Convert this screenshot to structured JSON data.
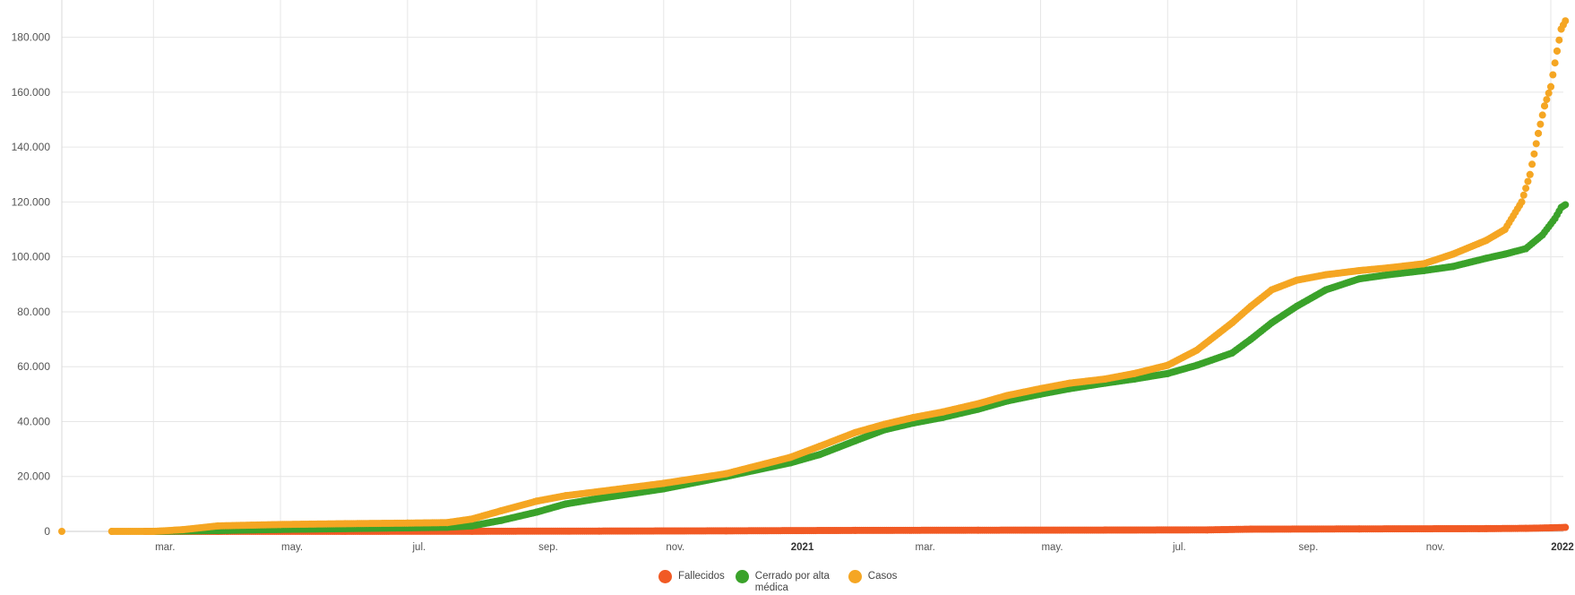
{
  "chart_data": {
    "type": "scatter",
    "x_type": "date",
    "x_range": [
      "2020-01-17",
      "2022-01-01"
    ],
    "ylim": [
      0,
      190000
    ],
    "grid": true,
    "legend_position": "bottom-center",
    "y_ticks": [
      {
        "value": 0,
        "label": "0"
      },
      {
        "value": 20000,
        "label": "20.000"
      },
      {
        "value": 40000,
        "label": "40.000"
      },
      {
        "value": 60000,
        "label": "60.000"
      },
      {
        "value": 80000,
        "label": "80.000"
      },
      {
        "value": 100000,
        "label": "100.000"
      },
      {
        "value": 120000,
        "label": "120.000"
      },
      {
        "value": 140000,
        "label": "140.000"
      },
      {
        "value": 160000,
        "label": "160.000"
      },
      {
        "value": 180000,
        "label": "180.000"
      }
    ],
    "x_ticks": [
      {
        "date": "2020-03-01",
        "label": "mar.",
        "bold": false
      },
      {
        "date": "2020-05-01",
        "label": "may.",
        "bold": false
      },
      {
        "date": "2020-07-01",
        "label": "jul.",
        "bold": false
      },
      {
        "date": "2020-09-01",
        "label": "sep.",
        "bold": false
      },
      {
        "date": "2020-11-01",
        "label": "nov.",
        "bold": false
      },
      {
        "date": "2021-01-01",
        "label": "2021",
        "bold": true
      },
      {
        "date": "2021-03-01",
        "label": "mar.",
        "bold": false
      },
      {
        "date": "2021-05-01",
        "label": "may.",
        "bold": false
      },
      {
        "date": "2021-07-01",
        "label": "jul.",
        "bold": false
      },
      {
        "date": "2021-09-01",
        "label": "sep.",
        "bold": false
      },
      {
        "date": "2021-11-01",
        "label": "nov.",
        "bold": false
      },
      {
        "date": "2022-01-01",
        "label": "2022",
        "bold": true
      }
    ],
    "series": [
      {
        "name": "Fallecidos",
        "color": "#f15a24",
        "points": [
          [
            "2020-02-26",
            0
          ],
          [
            "2020-04-01",
            5
          ],
          [
            "2020-06-01",
            10
          ],
          [
            "2020-08-01",
            40
          ],
          [
            "2020-10-01",
            100
          ],
          [
            "2020-12-01",
            200
          ],
          [
            "2021-02-01",
            350
          ],
          [
            "2021-04-01",
            420
          ],
          [
            "2021-06-01",
            470
          ],
          [
            "2021-07-20",
            550
          ],
          [
            "2021-08-10",
            800
          ],
          [
            "2021-10-01",
            900
          ],
          [
            "2021-12-01",
            1000
          ],
          [
            "2021-12-20",
            1100
          ],
          [
            "2022-01-01",
            1300
          ],
          [
            "2022-01-08",
            1450
          ]
        ]
      },
      {
        "name": "Cerrado por alta médica",
        "color": "#3aa22a",
        "points": [
          [
            "2020-03-01",
            0
          ],
          [
            "2020-04-01",
            300
          ],
          [
            "2020-05-01",
            700
          ],
          [
            "2020-06-01",
            1000
          ],
          [
            "2020-07-01",
            1300
          ],
          [
            "2020-07-20",
            1500
          ],
          [
            "2020-08-01",
            2000
          ],
          [
            "2020-08-15",
            4000
          ],
          [
            "2020-09-01",
            7000
          ],
          [
            "2020-09-15",
            10000
          ],
          [
            "2020-10-01",
            12000
          ],
          [
            "2020-11-01",
            15500
          ],
          [
            "2020-12-01",
            20000
          ],
          [
            "2021-01-01",
            25000
          ],
          [
            "2021-01-15",
            28000
          ],
          [
            "2021-02-01",
            33000
          ],
          [
            "2021-02-15",
            37000
          ],
          [
            "2021-03-01",
            39500
          ],
          [
            "2021-03-15",
            41500
          ],
          [
            "2021-04-01",
            44500
          ],
          [
            "2021-04-15",
            47500
          ],
          [
            "2021-05-01",
            50000
          ],
          [
            "2021-05-15",
            52000
          ],
          [
            "2021-06-01",
            54000
          ],
          [
            "2021-06-15",
            55500
          ],
          [
            "2021-07-01",
            57500
          ],
          [
            "2021-07-15",
            60500
          ],
          [
            "2021-08-01",
            65000
          ],
          [
            "2021-08-10",
            70000
          ],
          [
            "2021-08-20",
            76000
          ],
          [
            "2021-09-01",
            82000
          ],
          [
            "2021-09-15",
            88000
          ],
          [
            "2021-10-01",
            92000
          ],
          [
            "2021-10-15",
            93500
          ],
          [
            "2021-11-01",
            95000
          ],
          [
            "2021-11-15",
            96500
          ],
          [
            "2021-12-01",
            99500
          ],
          [
            "2021-12-10",
            101000
          ],
          [
            "2021-12-20",
            103000
          ],
          [
            "2021-12-28",
            108000
          ],
          [
            "2022-01-03",
            114000
          ],
          [
            "2022-01-06",
            118000
          ],
          [
            "2022-01-08",
            119000
          ]
        ]
      },
      {
        "name": "Casos",
        "color": "#f5a623",
        "points": [
          [
            "2020-01-17",
            0
          ],
          [
            "2020-02-10",
            0
          ],
          [
            "2020-03-01",
            0
          ],
          [
            "2020-03-15",
            600
          ],
          [
            "2020-04-01",
            2000
          ],
          [
            "2020-05-01",
            2500
          ],
          [
            "2020-06-01",
            2800
          ],
          [
            "2020-07-01",
            3000
          ],
          [
            "2020-07-20",
            3200
          ],
          [
            "2020-08-01",
            4500
          ],
          [
            "2020-08-15",
            7500
          ],
          [
            "2020-09-01",
            11000
          ],
          [
            "2020-09-15",
            13000
          ],
          [
            "2020-10-01",
            14500
          ],
          [
            "2020-11-01",
            17500
          ],
          [
            "2020-12-01",
            21000
          ],
          [
            "2021-01-01",
            27000
          ],
          [
            "2021-01-15",
            31000
          ],
          [
            "2021-02-01",
            36000
          ],
          [
            "2021-02-15",
            39000
          ],
          [
            "2021-03-01",
            41500
          ],
          [
            "2021-03-15",
            43500
          ],
          [
            "2021-04-01",
            46500
          ],
          [
            "2021-04-15",
            49500
          ],
          [
            "2021-05-01",
            52000
          ],
          [
            "2021-05-15",
            54000
          ],
          [
            "2021-06-01",
            55500
          ],
          [
            "2021-06-15",
            57500
          ],
          [
            "2021-07-01",
            60500
          ],
          [
            "2021-07-15",
            66000
          ],
          [
            "2021-08-01",
            76000
          ],
          [
            "2021-08-10",
            82000
          ],
          [
            "2021-08-20",
            88000
          ],
          [
            "2021-09-01",
            91500
          ],
          [
            "2021-09-15",
            93500
          ],
          [
            "2021-10-01",
            95000
          ],
          [
            "2021-10-15",
            96000
          ],
          [
            "2021-11-01",
            97500
          ],
          [
            "2021-11-15",
            101000
          ],
          [
            "2021-12-01",
            106000
          ],
          [
            "2021-12-10",
            110000
          ],
          [
            "2021-12-18",
            120000
          ],
          [
            "2021-12-22",
            130000
          ],
          [
            "2021-12-26",
            145000
          ],
          [
            "2021-12-29",
            155000
          ],
          [
            "2022-01-01",
            162000
          ],
          [
            "2022-01-04",
            175000
          ],
          [
            "2022-01-06",
            183000
          ],
          [
            "2022-01-08",
            186000
          ]
        ]
      }
    ]
  }
}
